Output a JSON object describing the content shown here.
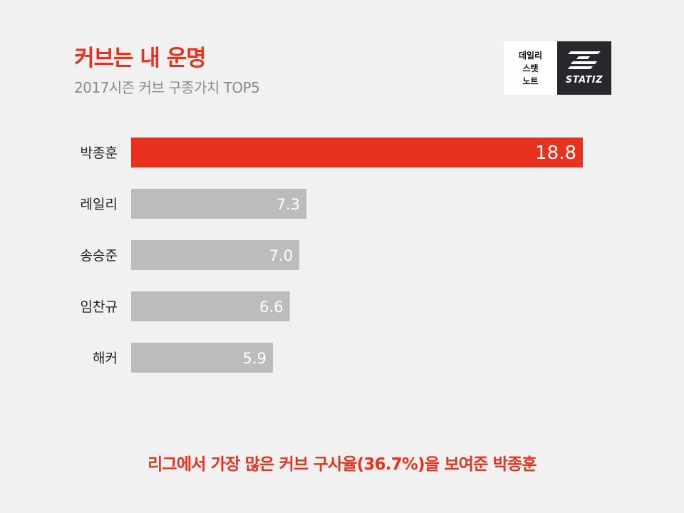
{
  "header": {
    "title": "커브는 내 운명",
    "subtitle": "2017시즌 커브 구종가치 TOP5"
  },
  "logo": {
    "line1": "데일리",
    "line2": "스탯",
    "line3": "노트",
    "brand": "STATIZ"
  },
  "footer": {
    "caption": "리그에서 가장 많은 커브 구사율(36.7%)을 보여준 박종훈"
  },
  "colors": {
    "highlight": "#e8321e",
    "bar": "#bcbcbc",
    "label": "#222222",
    "value": "#ffffff"
  },
  "chart_data": {
    "type": "bar",
    "orientation": "horizontal",
    "categories": [
      "박종훈",
      "레일리",
      "송승준",
      "임찬규",
      "해커"
    ],
    "values": [
      18.8,
      7.3,
      7.0,
      6.6,
      5.9
    ],
    "value_labels": [
      "18.8",
      "7.3",
      "7.0",
      "6.6",
      "5.9"
    ],
    "highlight_index": 0,
    "xlim": [
      0,
      18.8
    ],
    "grid": false,
    "legend": "none"
  }
}
